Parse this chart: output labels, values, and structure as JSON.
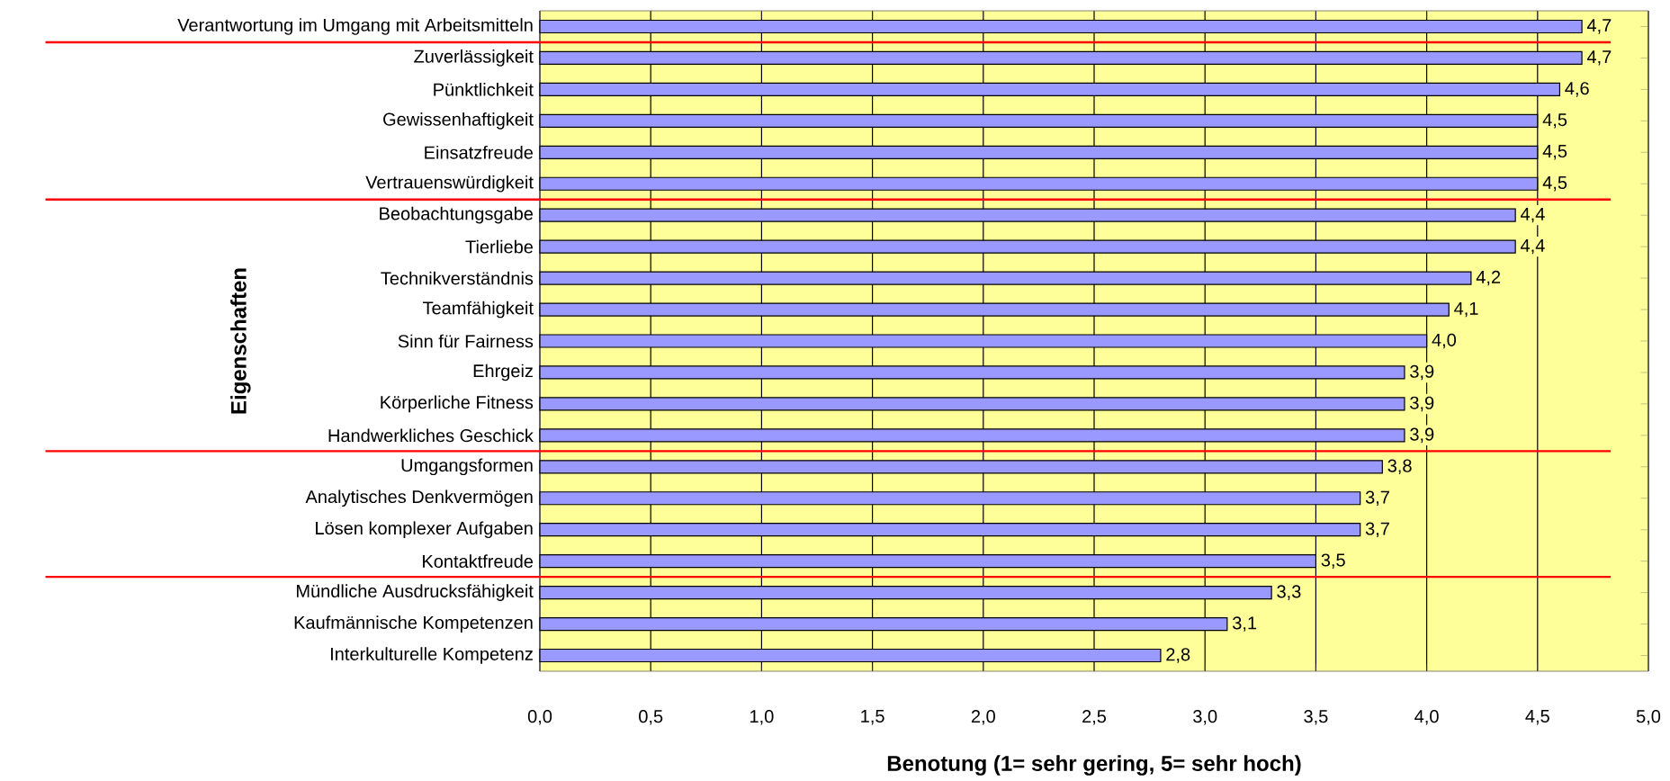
{
  "chart_data": {
    "type": "bar",
    "orientation": "horizontal",
    "xlabel": "Benotung (1= sehr gering, 5= sehr hoch)",
    "ylabel": "Eigenschaften",
    "categories": [
      "Verantwortung im Umgang mit Arbeitsmitteln",
      "Zuverlässigkeit",
      "Pünktlichkeit",
      "Gewissenhaftigkeit",
      "Einsatzfreude",
      "Vertrauenswürdigkeit",
      "Beobachtungsgabe",
      "Tierliebe",
      "Technikverständnis",
      "Teamfähigkeit",
      "Sinn für Fairness",
      "Ehrgeiz",
      "Körperliche Fitness",
      "Handwerkliches Geschick",
      "Umgangsformen",
      "Analytisches Denkvermögen",
      "Lösen komplexer Aufgaben",
      "Kontaktfreude",
      "Mündliche Ausdrucksfähigkeit",
      "Kaufmännische Kompetenzen",
      "Interkulturelle Kompetenz"
    ],
    "values": [
      4.7,
      4.7,
      4.6,
      4.5,
      4.5,
      4.5,
      4.4,
      4.4,
      4.2,
      4.1,
      4.0,
      3.9,
      3.9,
      3.9,
      3.8,
      3.7,
      3.7,
      3.5,
      3.3,
      3.1,
      2.8
    ],
    "value_labels": [
      "4,7",
      "4,7",
      "4,6",
      "4,5",
      "4,5",
      "4,5",
      "4,4",
      "4,4",
      "4,2",
      "4,1",
      "4,0",
      "3,9",
      "3,9",
      "3,9",
      "3,8",
      "3,7",
      "3,7",
      "3,5",
      "3,3",
      "3,1",
      "2,8"
    ],
    "color": "#9999ff",
    "xlim": [
      0,
      5
    ],
    "xticks": [
      {
        "value": 0,
        "label": "0,0"
      },
      {
        "value": 0.5,
        "label": "0,5"
      },
      {
        "value": 1,
        "label": "1,0"
      },
      {
        "value": 1.5,
        "label": "1,5"
      },
      {
        "value": 2,
        "label": "2,0"
      },
      {
        "value": 2.5,
        "label": "2,5"
      },
      {
        "value": 3,
        "label": "3,0"
      },
      {
        "value": 3.5,
        "label": "3,5"
      },
      {
        "value": 4,
        "label": "4,0"
      },
      {
        "value": 4.5,
        "label": "4,5"
      },
      {
        "value": 5,
        "label": "5,0"
      }
    ],
    "grid": "x"
  }
}
